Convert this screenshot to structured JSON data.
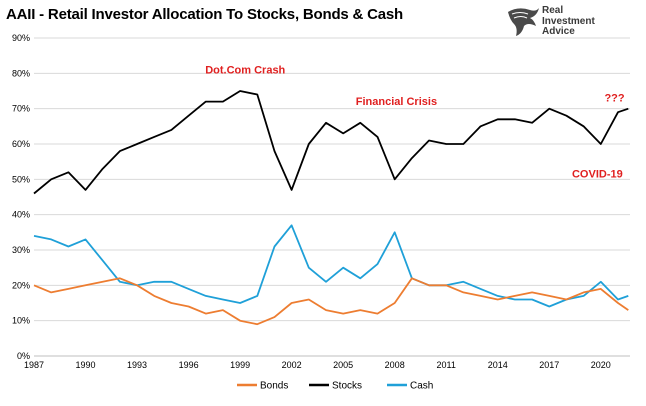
{
  "title": "AAII - Retail Investor Allocation To Stocks, Bonds & Cash",
  "logo": {
    "line1": "Real",
    "line2": "Investment",
    "line3": "Advice"
  },
  "colors": {
    "stocks": "#000000",
    "bonds": "#ed7d31",
    "cash": "#1fa0d8",
    "annotation": "#e02020",
    "grid": "#d9d9d9"
  },
  "chart_data": {
    "type": "line",
    "title": "AAII - Retail Investor Allocation To Stocks, Bonds & Cash",
    "xlabel": "",
    "ylabel": "",
    "xlim": [
      1987,
      2021.7
    ],
    "ylim": [
      0,
      90
    ],
    "x_ticks": [
      1987,
      1990,
      1993,
      1996,
      1999,
      2002,
      2005,
      2008,
      2011,
      2014,
      2017,
      2020
    ],
    "y_ticks": [
      0,
      10,
      20,
      30,
      40,
      50,
      60,
      70,
      80,
      90
    ],
    "y_tick_labels": [
      "0%",
      "10%",
      "20%",
      "30%",
      "40%",
      "50%",
      "60%",
      "70%",
      "80%",
      "90%"
    ],
    "grid": "horizontal",
    "legend_position": "bottom",
    "series": [
      {
        "name": "Bonds",
        "x": [
          1987,
          1988,
          1989,
          1990,
          1991,
          1992,
          1993,
          1994,
          1995,
          1996,
          1997,
          1998,
          1999,
          2000,
          2001,
          2002,
          2003,
          2004,
          2005,
          2006,
          2007,
          2008,
          2009,
          2010,
          2011,
          2012,
          2013,
          2014,
          2015,
          2016,
          2017,
          2018,
          2019,
          2020,
          2021,
          2021.6
        ],
        "values": [
          20,
          18,
          19,
          20,
          21,
          22,
          20,
          17,
          15,
          14,
          12,
          13,
          10,
          9,
          11,
          15,
          16,
          13,
          12,
          13,
          12,
          15,
          22,
          20,
          20,
          18,
          17,
          16,
          17,
          18,
          17,
          16,
          18,
          19,
          15,
          13
        ]
      },
      {
        "name": "Stocks",
        "x": [
          1987,
          1988,
          1989,
          1990,
          1991,
          1992,
          1993,
          1994,
          1995,
          1996,
          1997,
          1998,
          1999,
          2000,
          2001,
          2002,
          2003,
          2004,
          2005,
          2006,
          2007,
          2008,
          2009,
          2010,
          2011,
          2012,
          2013,
          2014,
          2015,
          2016,
          2017,
          2018,
          2019,
          2020,
          2021,
          2021.6
        ],
        "values": [
          46,
          50,
          52,
          47,
          53,
          58,
          60,
          62,
          64,
          68,
          72,
          72,
          75,
          74,
          58,
          47,
          60,
          66,
          63,
          66,
          62,
          50,
          56,
          61,
          60,
          60,
          65,
          67,
          67,
          66,
          70,
          68,
          65,
          60,
          69,
          70
        ]
      },
      {
        "name": "Cash",
        "x": [
          1987,
          1988,
          1989,
          1990,
          1991,
          1992,
          1993,
          1994,
          1995,
          1996,
          1997,
          1998,
          1999,
          2000,
          2001,
          2002,
          2003,
          2004,
          2005,
          2006,
          2007,
          2008,
          2009,
          2010,
          2011,
          2012,
          2013,
          2014,
          2015,
          2016,
          2017,
          2018,
          2019,
          2020,
          2021,
          2021.6
        ],
        "values": [
          34,
          33,
          31,
          33,
          27,
          21,
          20,
          21,
          21,
          19,
          17,
          16,
          15,
          17,
          31,
          37,
          25,
          21,
          25,
          22,
          26,
          35,
          22,
          20,
          20,
          21,
          19,
          17,
          16,
          16,
          14,
          16,
          17,
          21,
          16,
          17
        ]
      }
    ],
    "annotations": [
      {
        "text": "Dot.Com Crash",
        "x": 1999.3,
        "y": 80,
        "color": "#e02020"
      },
      {
        "text": "Financial Crisis",
        "x": 2008.1,
        "y": 71,
        "color": "#e02020"
      },
      {
        "text": "???",
        "x": 2020.8,
        "y": 72,
        "color": "#e02020"
      },
      {
        "text": "COVID-19",
        "x": 2019.8,
        "y": 50.5,
        "color": "#e02020"
      }
    ]
  }
}
